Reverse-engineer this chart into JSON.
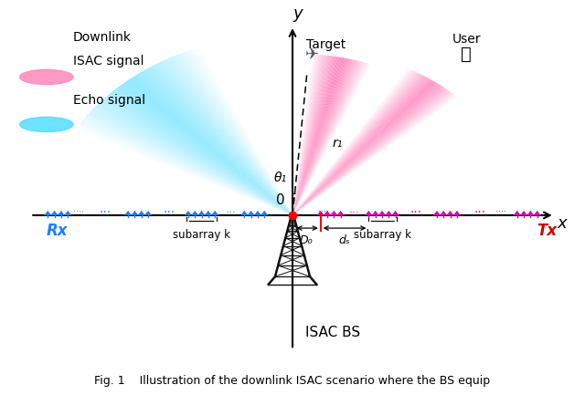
{
  "bg_color": "#ffffff",
  "rx_color": "#1a8cff",
  "tx_color": "#cc00cc",
  "red_color": "#ff0000",
  "black": "#000000",
  "tower_color": "#111111",
  "angle_label": "θ₁",
  "r_label": "r₁",
  "d0_label": "D₀",
  "ds_label": "dₛ",
  "subarray_label": "subarray k",
  "rx_label": "Rx",
  "tx_label": "Tx",
  "target_label": "Target",
  "user_label": "User",
  "bs_label": "ISAC BS",
  "downlink_label1": "Downlink",
  "downlink_label2": "ISAC signal",
  "echo_label": "Echo signal",
  "x_label": "x",
  "y_label": "y",
  "caption": "Fig. 1    Illustration of the downlink ISAC scenario where the BS equip",
  "xlim": [
    -1.05,
    1.05
  ],
  "ylim": [
    -0.75,
    1.05
  ],
  "figsize": [
    6.4,
    4.33
  ],
  "dpi": 100
}
